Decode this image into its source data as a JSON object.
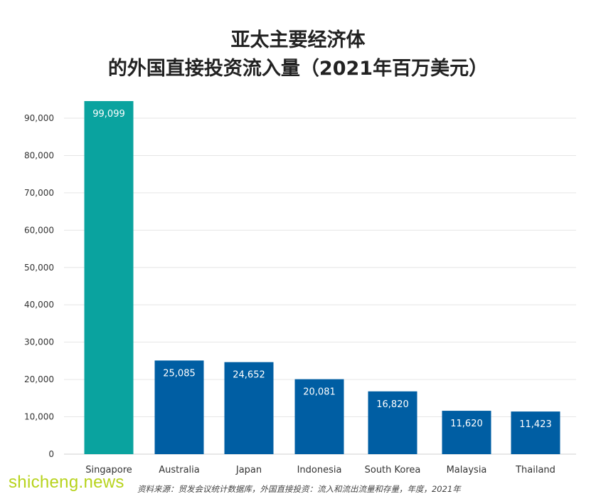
{
  "title": [
    "亚太主要经济体",
    "的外国直接投资流入量（2021年百万美元）"
  ],
  "source": "资料来源：贸发会议统计数据库，外国直接投资：流入和流出流量和存量，年度，2021年",
  "watermark": "shicheng.news",
  "chart_data": {
    "type": "bar",
    "categories": [
      "Singapore",
      "Australia",
      "Japan",
      "Indonesia",
      "South Korea",
      "Malaysia",
      "Thailand"
    ],
    "values": [
      99099,
      25085,
      24652,
      20081,
      16820,
      11620,
      11423
    ],
    "value_labels": [
      "99,099",
      "25,085",
      "24,652",
      "20,081",
      "16,820",
      "11,620",
      "11,423"
    ],
    "yticks": [
      0,
      10000,
      20000,
      30000,
      40000,
      50000,
      60000,
      70000,
      80000,
      90000
    ],
    "ytick_labels": [
      "0",
      "10,000",
      "20,000",
      "30,000",
      "40,000",
      "50,000",
      "60,000",
      "70,000",
      "80,000",
      "90,000"
    ],
    "ylim": [
      0,
      90000
    ],
    "grid": true,
    "colors": {
      "highlight": "#0aa39f",
      "bar": "#005ea3",
      "grid": "#e6e6e6"
    }
  }
}
